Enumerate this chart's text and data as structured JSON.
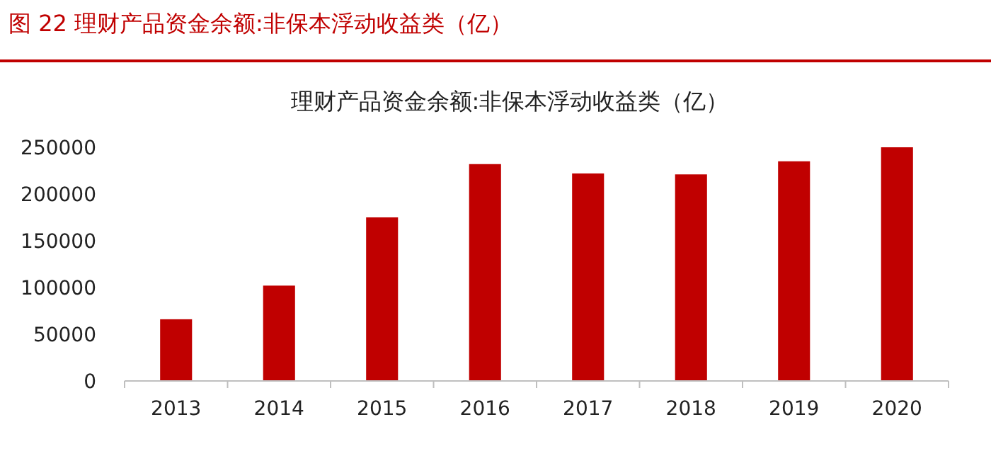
{
  "chart_data": {
    "type": "bar",
    "title": "理财产品资金余额:非保本浮动收益类（亿）",
    "annotations": [
      "图 22 理财产品资金余额:非保本浮动收益类（亿）"
    ],
    "categories": [
      "2013",
      "2014",
      "2015",
      "2016",
      "2017",
      "2018",
      "2019",
      "2020"
    ],
    "values": [
      66000,
      102000,
      175000,
      232000,
      222000,
      221000,
      235000,
      250000
    ],
    "color": "#c00000",
    "ylim": [
      0,
      250000
    ],
    "yticks": [
      0,
      50000,
      100000,
      150000,
      200000,
      250000
    ],
    "grid": false
  }
}
